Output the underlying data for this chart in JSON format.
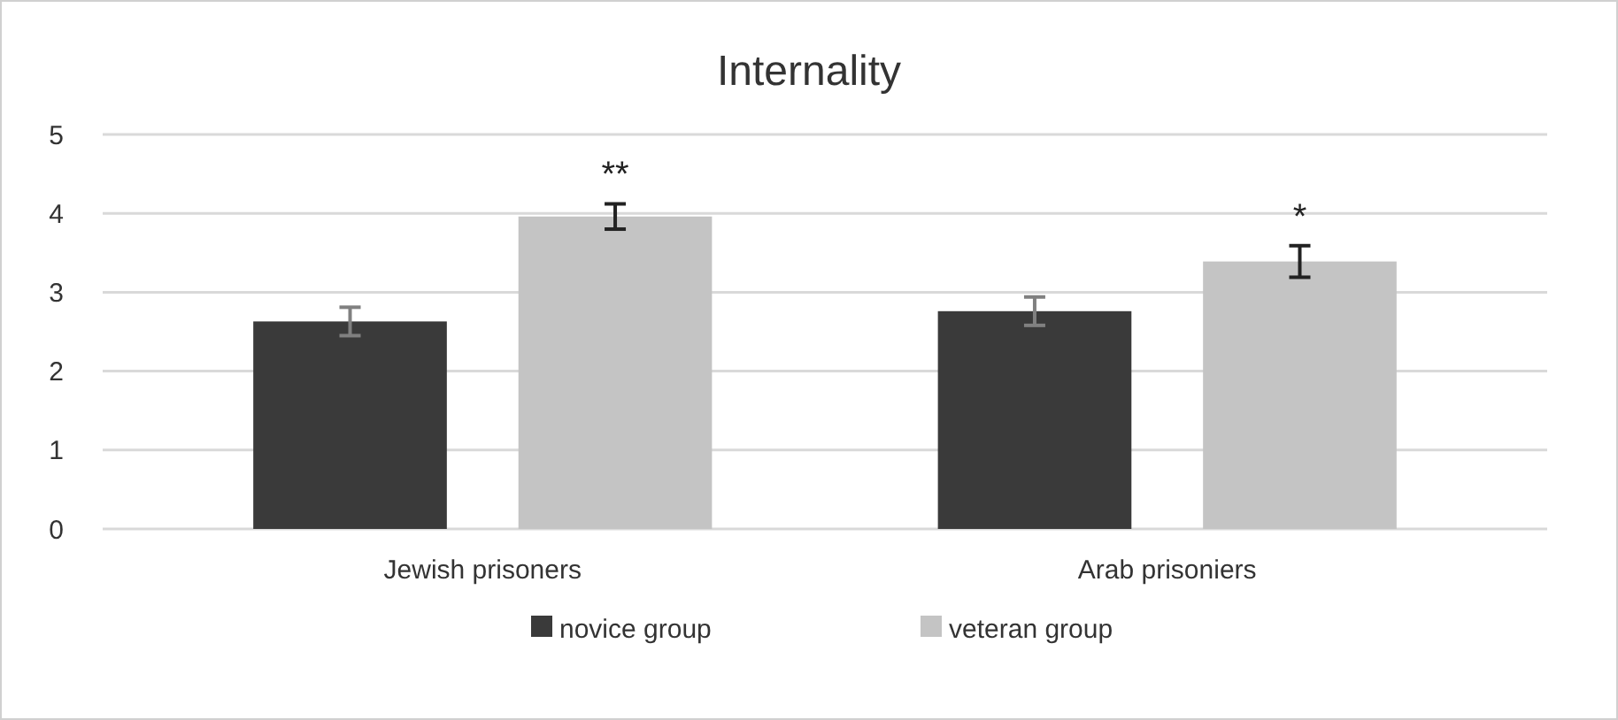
{
  "chart_data": {
    "type": "bar",
    "title": "Internality",
    "categories": [
      "Jewish prisoners",
      "Arab prisoniers"
    ],
    "series": [
      {
        "name": "novice group",
        "color": "#3a3a3a",
        "values": [
          2.63,
          2.76
        ],
        "errors": [
          0.18,
          0.18
        ]
      },
      {
        "name": "veteran group",
        "color": "#c4c4c4",
        "values": [
          3.96,
          3.39
        ],
        "errors": [
          0.16,
          0.2
        ]
      }
    ],
    "ylim": [
      0,
      5
    ],
    "yticks": [
      0,
      1,
      2,
      3,
      4,
      5
    ],
    "grid": "y",
    "legend": "bottom",
    "annotations": [
      "**",
      "*"
    ]
  }
}
